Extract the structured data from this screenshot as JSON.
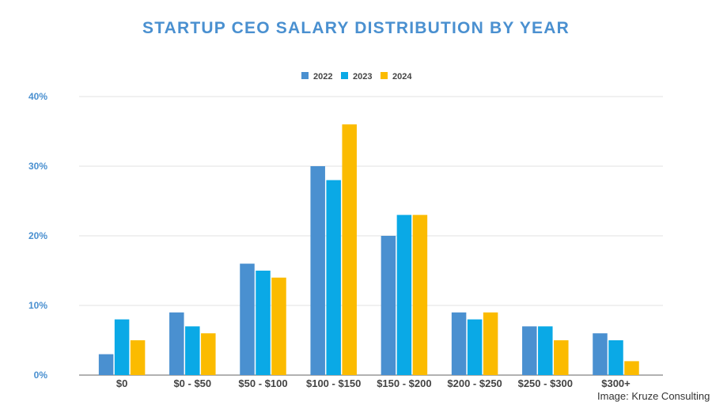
{
  "chart_data": {
    "type": "bar",
    "title": "STARTUP CEO SALARY DISTRIBUTION BY YEAR",
    "categories": [
      "$0",
      "$0 - $50",
      "$50 - $100",
      "$100 - $150",
      "$150 - $200",
      "$200 - $250",
      "$250 - $300",
      "$300+"
    ],
    "series": [
      {
        "name": "2022",
        "color": "#4a90d0",
        "values": [
          3,
          9,
          16,
          30,
          20,
          9,
          7,
          6
        ]
      },
      {
        "name": "2023",
        "color": "#0aa9e6",
        "values": [
          8,
          7,
          15,
          28,
          23,
          8,
          7,
          5
        ]
      },
      {
        "name": "2024",
        "color": "#fbbb00",
        "values": [
          5,
          6,
          14,
          36,
          23,
          9,
          5,
          2
        ]
      }
    ],
    "yticks": [
      "0%",
      "10%",
      "20%",
      "30%",
      "40%"
    ],
    "ylim": [
      0,
      40
    ],
    "xlabel": "",
    "ylabel": "",
    "grid": true,
    "legend": "top-center"
  },
  "credit": "Image: Kruze Consulting"
}
